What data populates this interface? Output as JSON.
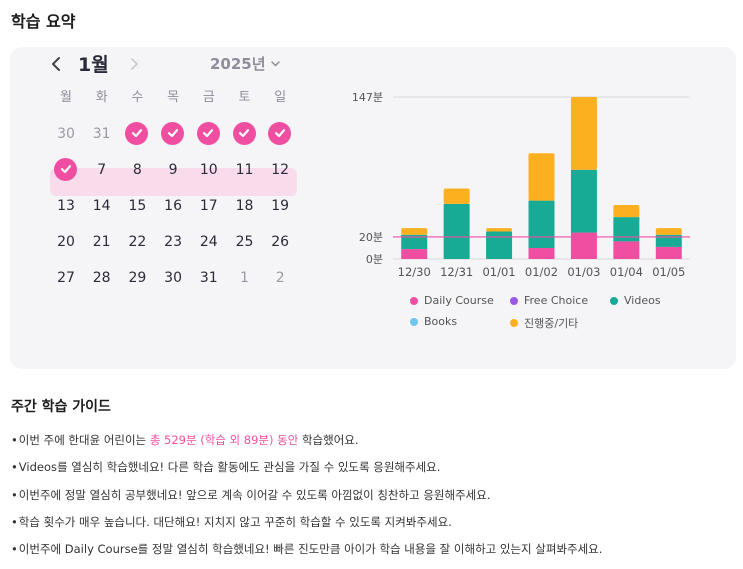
{
  "page_title": "학습 요약",
  "calendar": {
    "month": "1월",
    "year": "2025년",
    "weekdays": [
      "월",
      "화",
      "수",
      "목",
      "금",
      "토",
      "일"
    ],
    "weeks": [
      [
        {
          "d": "30",
          "dim": true
        },
        {
          "d": "31",
          "dim": true
        },
        {
          "d": "1",
          "check": true
        },
        {
          "d": "2",
          "check": true
        },
        {
          "d": "3",
          "check": true
        },
        {
          "d": "4",
          "check": true
        },
        {
          "d": "5",
          "check": true
        }
      ],
      [
        {
          "d": "6",
          "check": true
        },
        {
          "d": "7"
        },
        {
          "d": "8"
        },
        {
          "d": "9"
        },
        {
          "d": "10"
        },
        {
          "d": "11"
        },
        {
          "d": "12"
        }
      ],
      [
        {
          "d": "13"
        },
        {
          "d": "14"
        },
        {
          "d": "15"
        },
        {
          "d": "16"
        },
        {
          "d": "17"
        },
        {
          "d": "18"
        },
        {
          "d": "19"
        }
      ],
      [
        {
          "d": "20"
        },
        {
          "d": "21"
        },
        {
          "d": "22"
        },
        {
          "d": "23"
        },
        {
          "d": "24"
        },
        {
          "d": "25"
        },
        {
          "d": "26"
        }
      ],
      [
        {
          "d": "27"
        },
        {
          "d": "28"
        },
        {
          "d": "29"
        },
        {
          "d": "30"
        },
        {
          "d": "31"
        },
        {
          "d": "1",
          "dim": true
        },
        {
          "d": "2",
          "dim": true
        }
      ]
    ]
  },
  "chart_data": {
    "type": "bar",
    "stacked": true,
    "categories": [
      "12/30",
      "12/31",
      "01/01",
      "01/02",
      "01/03",
      "01/04",
      "01/05"
    ],
    "y_ticks": [
      "0분",
      "20분",
      "147분"
    ],
    "ylim": [
      0,
      147
    ],
    "reference_line": 20,
    "series": [
      {
        "name": "Daily Course",
        "color": "#f04fa1",
        "values": [
          9,
          0,
          0,
          10,
          24,
          16,
          11
        ]
      },
      {
        "name": "Free Choice",
        "color": "#9b59e6",
        "values": [
          0,
          0,
          0,
          0,
          0,
          0,
          0
        ]
      },
      {
        "name": "Videos",
        "color": "#17ab95",
        "values": [
          13,
          50,
          25,
          43,
          57,
          22,
          11
        ]
      },
      {
        "name": "Books",
        "color": "#6ec6ea",
        "values": [
          0,
          0,
          0,
          0,
          0,
          0,
          0
        ]
      },
      {
        "name": "진행중/기타",
        "color": "#fdb01f",
        "values": [
          6,
          14,
          3,
          43,
          66,
          11,
          6
        ]
      }
    ],
    "legend_position": "bottom"
  },
  "guide": {
    "title": "주간 학습 가이드",
    "line1_pre": "이번 주에 한대윤 어린이는 ",
    "line1_hl": "총 529분 (학습 외 89분) 동안",
    "line1_post": " 학습했어요.",
    "line2": "Videos를 열심히 학습했네요! 다른 학습 활동에도 관심을 가질 수 있도록 응원해주세요.",
    "line3": "이번주에 정말 열심히 공부했네요! 앞으로 계속 이어갈 수 있도록 아낌없이 칭찬하고 응원해주세요.",
    "line4": "학습 횟수가 매우 높습니다. 대단해요! 지치지 않고 꾸준히 학습할 수 있도록 지켜봐주세요.",
    "line5": "이번주에 Daily Course를 정말 열심히 학습했네요! 빠른 진도만큼 아이가 학습 내용을 잘 이해하고 있는지 살펴봐주세요."
  }
}
